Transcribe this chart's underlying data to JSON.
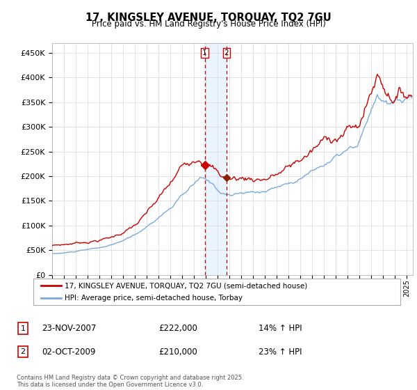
{
  "title": "17, KINGSLEY AVENUE, TORQUAY, TQ2 7GU",
  "subtitle": "Price paid vs. HM Land Registry's House Price Index (HPI)",
  "ylabel_ticks": [
    "£0",
    "£50K",
    "£100K",
    "£150K",
    "£200K",
    "£250K",
    "£300K",
    "£350K",
    "£400K",
    "£450K"
  ],
  "ytick_values": [
    0,
    50000,
    100000,
    150000,
    200000,
    250000,
    300000,
    350000,
    400000,
    450000
  ],
  "ylim": [
    0,
    470000
  ],
  "xlim_start": 1995.0,
  "xlim_end": 2025.5,
  "legend1_label": "17, KINGSLEY AVENUE, TORQUAY, TQ2 7GU (semi-detached house)",
  "legend2_label": "HPI: Average price, semi-detached house, Torbay",
  "sale1_date": "23-NOV-2007",
  "sale1_price": "£222,000",
  "sale1_hpi": "14% ↑ HPI",
  "sale1_year": 2007.9,
  "sale2_date": "02-OCT-2009",
  "sale2_price": "£210,000",
  "sale2_hpi": "23% ↑ HPI",
  "sale2_year": 2009.75,
  "footer": "Contains HM Land Registry data © Crown copyright and database right 2025.\nThis data is licensed under the Open Government Licence v3.0.",
  "line_color_red": "#cc0000",
  "line_color_blue": "#7aaadd",
  "vline_color": "#cc0000",
  "shade_color": "#ddeeff",
  "box_color": "#cc0000",
  "background_color": "#ffffff",
  "grid_color": "#dddddd"
}
